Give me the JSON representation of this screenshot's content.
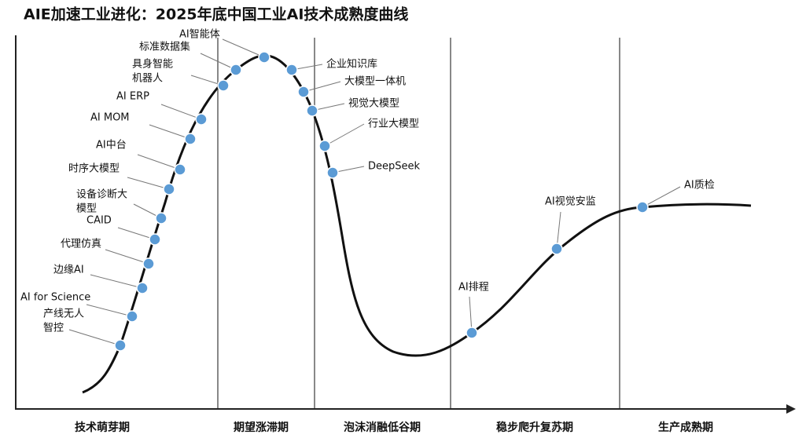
{
  "title": "AIE加速工业进化：2025年底中国工业AI技术成熟度曲线",
  "phases": [
    "技术萌芽期",
    "期望涨滞期",
    "泡沫消融低谷期",
    "稳步爬升复苏期",
    "生产成熟期"
  ],
  "nodes": [
    {
      "label": [
        "产线无人",
        "智控"
      ]
    },
    {
      "label": [
        "AI for Science"
      ]
    },
    {
      "label": [
        "边缘AI"
      ]
    },
    {
      "label": [
        "代理仿真"
      ]
    },
    {
      "label": [
        "CAID"
      ]
    },
    {
      "label": [
        "设备诊断大",
        "模型"
      ]
    },
    {
      "label": [
        "时序大模型"
      ]
    },
    {
      "label": [
        "AI中台"
      ]
    },
    {
      "label": [
        "AI MOM"
      ]
    },
    {
      "label": [
        "AI ERP"
      ]
    },
    {
      "label": [
        "具身智能",
        "机器人"
      ]
    },
    {
      "label": [
        "标准数据集"
      ]
    },
    {
      "label": [
        "AI智能体"
      ]
    },
    {
      "label": [
        "企业知识库"
      ]
    },
    {
      "label": [
        "大模型一体机"
      ]
    },
    {
      "label": [
        "视觉大模型"
      ]
    },
    {
      "label": [
        "行业大模型"
      ]
    },
    {
      "label": [
        "DeepSeek"
      ]
    },
    {
      "label": [
        "AI排程"
      ]
    },
    {
      "label": [
        "AI视觉安监"
      ]
    },
    {
      "label": [
        "AI质检"
      ]
    }
  ]
}
